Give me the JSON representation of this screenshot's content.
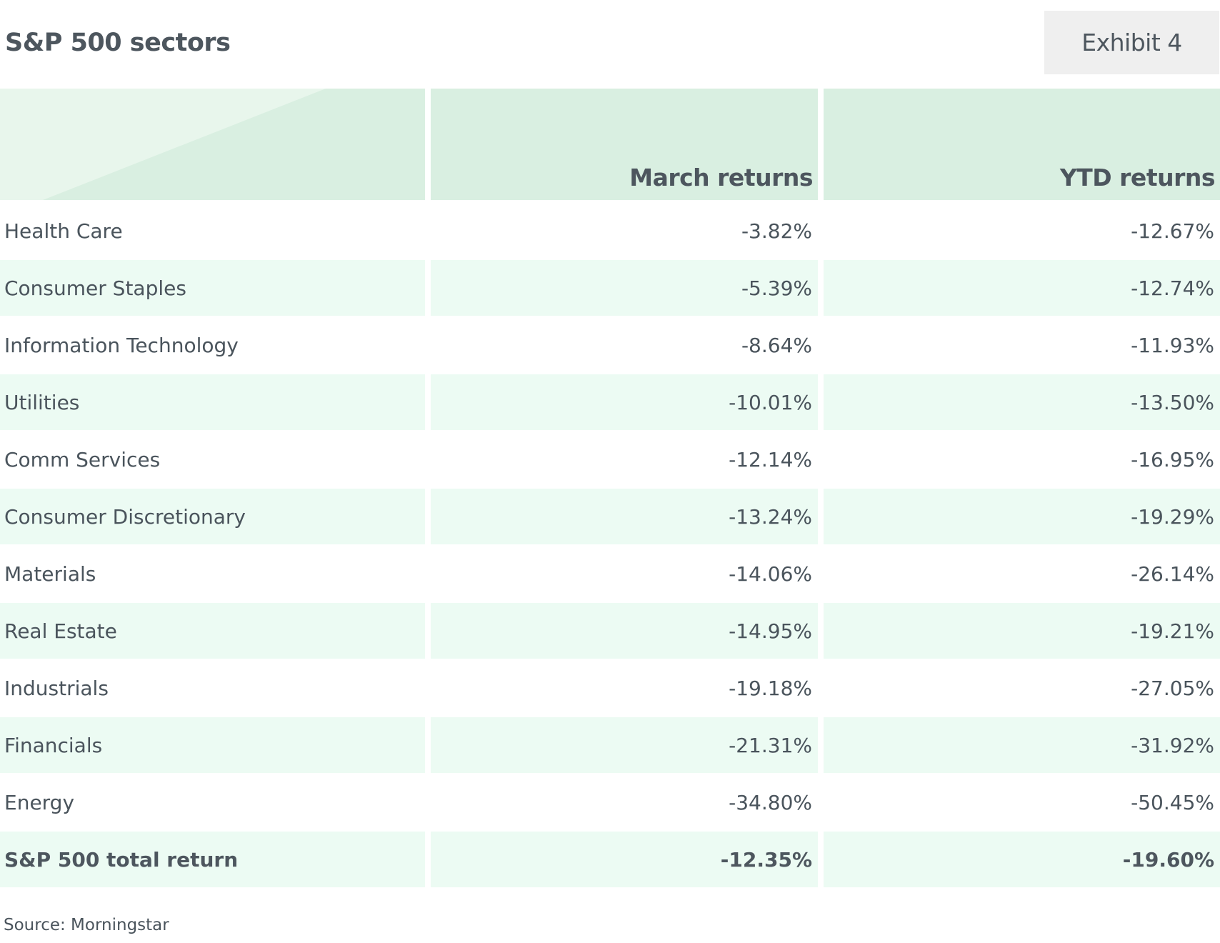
{
  "title": "S&P 500 sectors",
  "exhibit_label": "Exhibit 4",
  "table": {
    "headers": [
      "",
      "March returns",
      "YTD returns"
    ],
    "rows": [
      {
        "sector": "Health Care",
        "march": "-3.82%",
        "ytd": "-12.67%"
      },
      {
        "sector": "Consumer Staples",
        "march": "-5.39%",
        "ytd": "-12.74%"
      },
      {
        "sector": "Information Technology",
        "march": "-8.64%",
        "ytd": "-11.93%"
      },
      {
        "sector": "Utilities",
        "march": "-10.01%",
        "ytd": "-13.50%"
      },
      {
        "sector": "Comm Services",
        "march": "-12.14%",
        "ytd": "-16.95%"
      },
      {
        "sector": "Consumer Discretionary",
        "march": "-13.24%",
        "ytd": "-19.29%"
      },
      {
        "sector": "Materials",
        "march": "-14.06%",
        "ytd": "-26.14%"
      },
      {
        "sector": "Real Estate",
        "march": "-14.95%",
        "ytd": "-19.21%"
      },
      {
        "sector": "Industrials",
        "march": "-19.18%",
        "ytd": "-27.05%"
      },
      {
        "sector": "Financials",
        "march": "-21.31%",
        "ytd": "-31.92%"
      },
      {
        "sector": "Energy",
        "march": "-34.80%",
        "ytd": "-50.45%"
      }
    ],
    "total": {
      "sector": "S&P 500 total return",
      "march": "-12.35%",
      "ytd": "-19.60%"
    }
  },
  "source": "Source: Morningstar",
  "colors": {
    "header_bg": "#d9efe1",
    "row_shade": "#ecfbf3",
    "exhibit_bg": "#efefef",
    "text": "#4a545c"
  }
}
